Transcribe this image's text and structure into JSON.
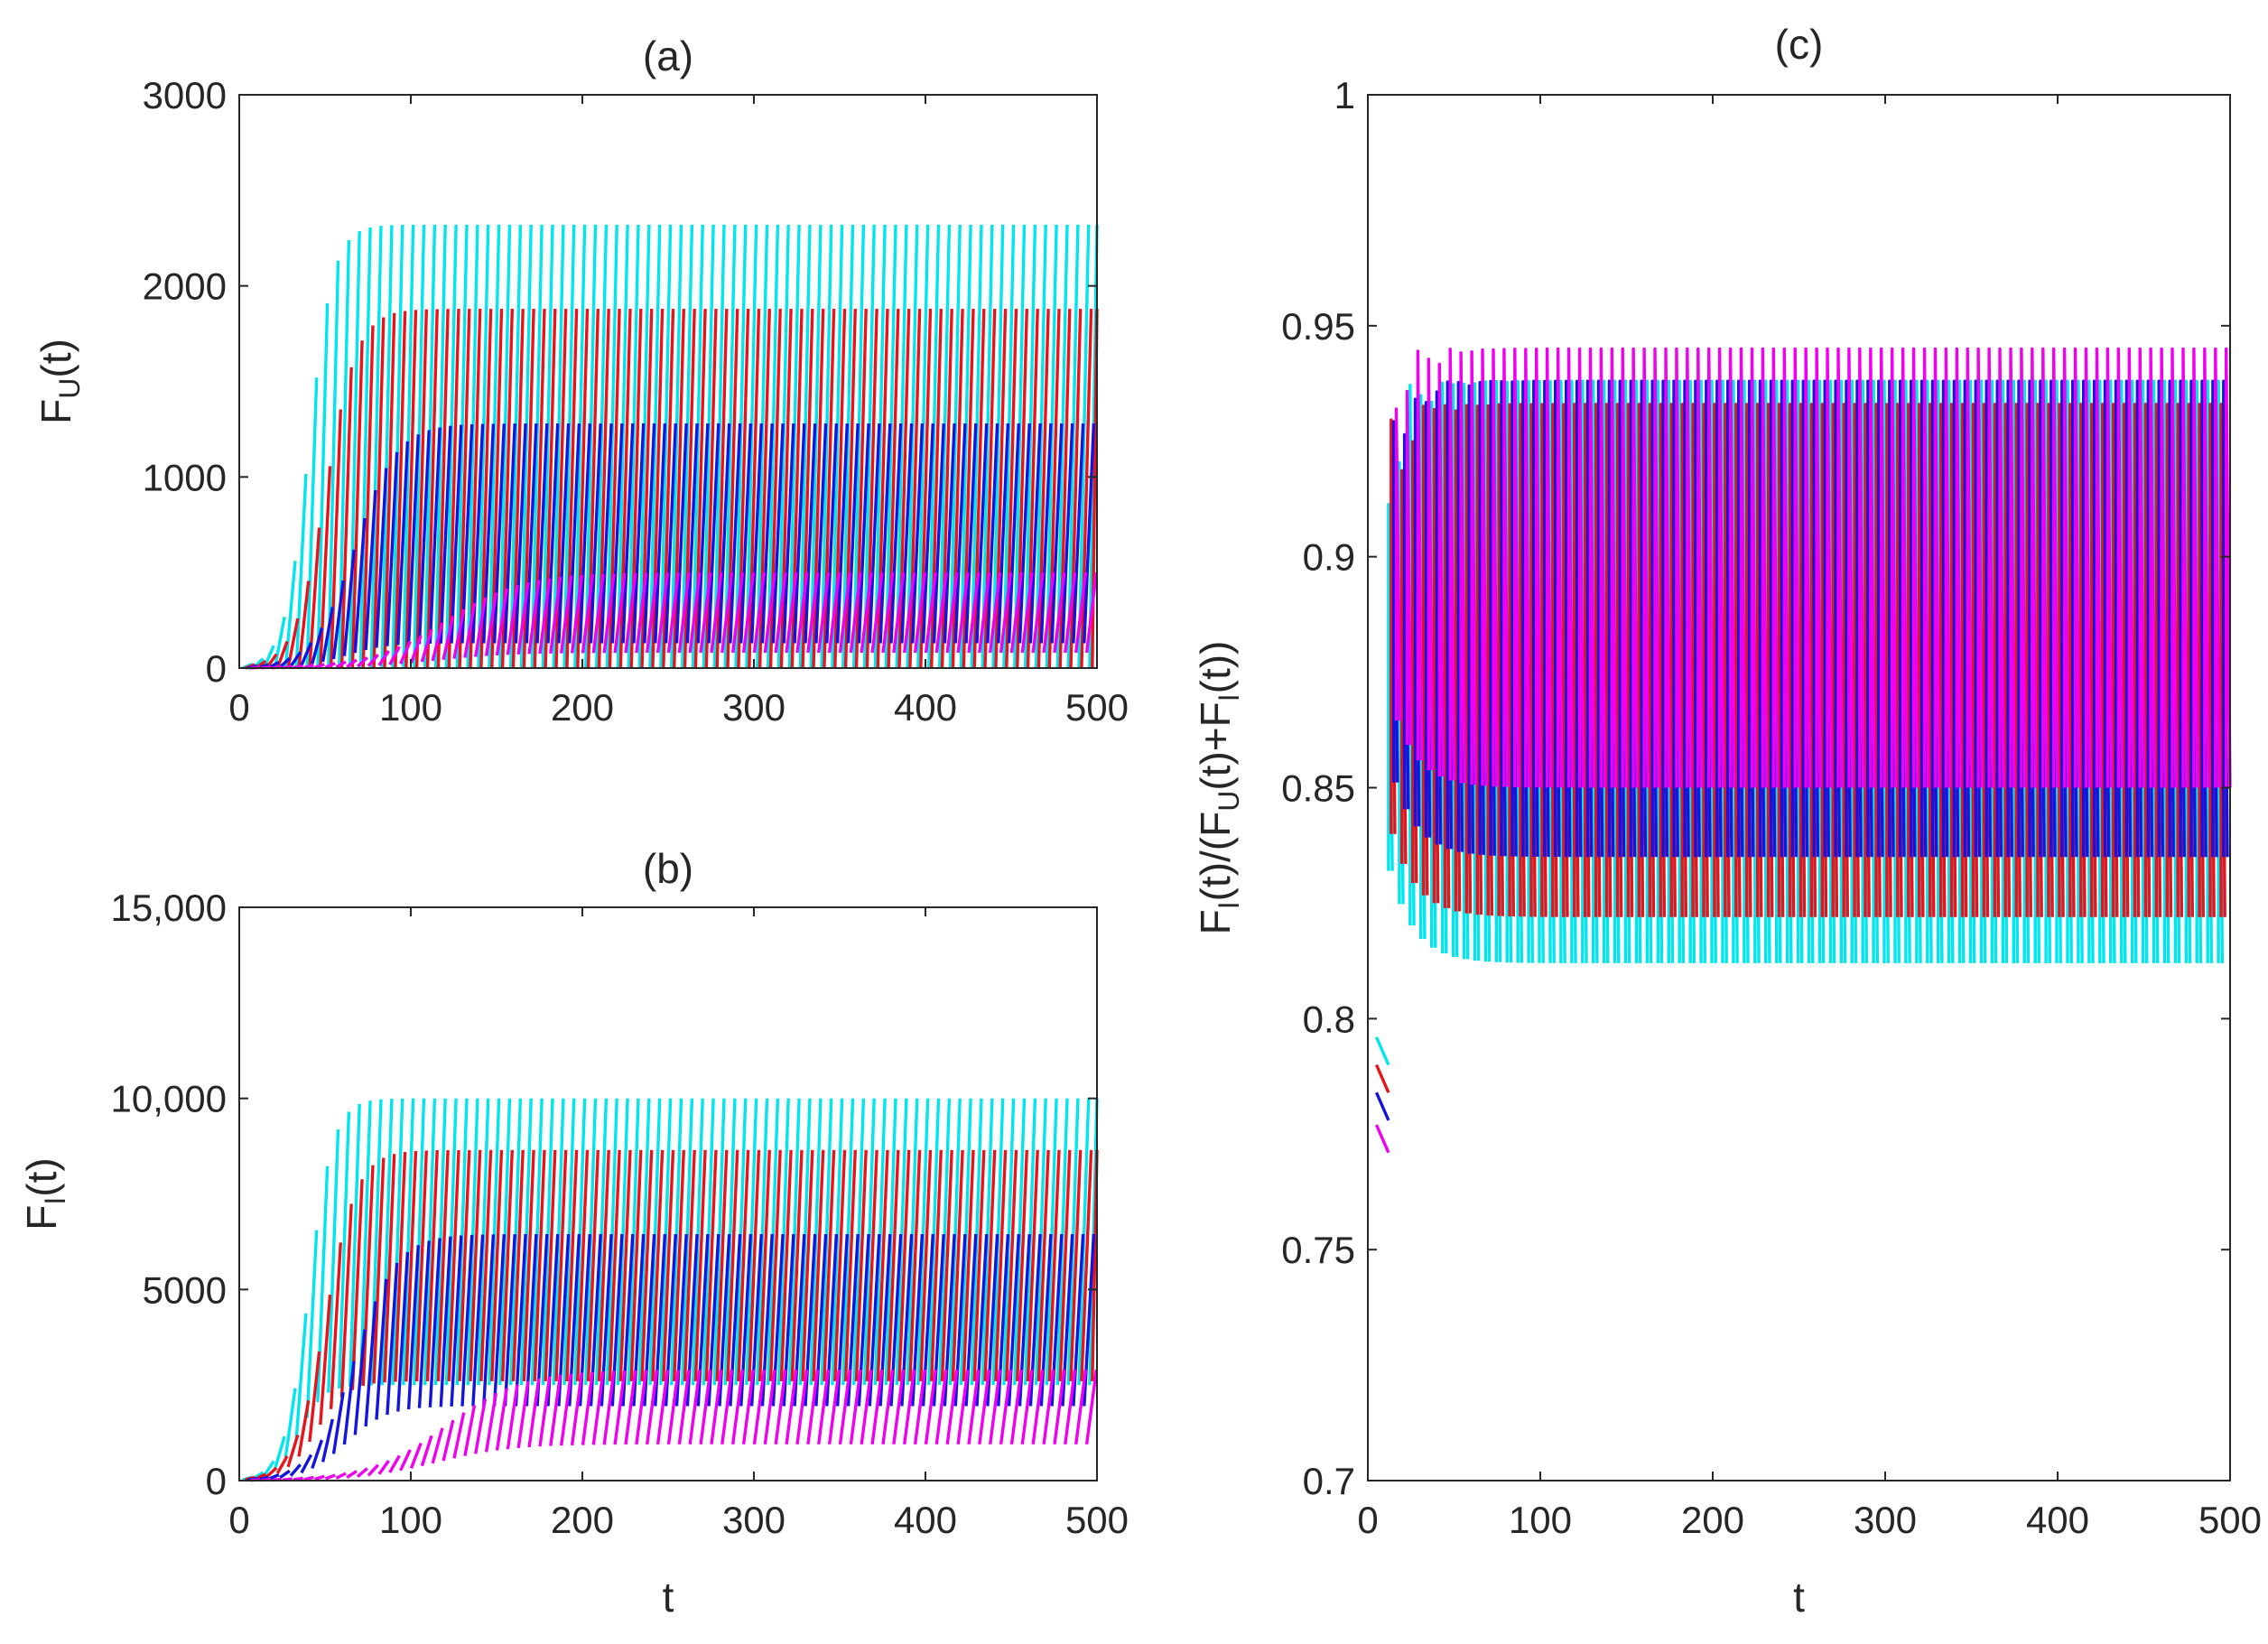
{
  "series_colors": {
    "cyan": "#00e5ee",
    "red": "#e8141c",
    "blue": "#1414e0",
    "magenta": "#f000f0",
    "purple": "#8a2be2"
  },
  "chart_data": [
    {
      "id": "a",
      "type": "line",
      "title": "(a)",
      "xlabel": "t",
      "ylabel": "F_U(t)",
      "ylabel_main": "F",
      "ylabel_sub": "U",
      "ylabel_tail": "(t)",
      "xlim": [
        0,
        500
      ],
      "ylim": [
        0,
        3000
      ],
      "xticks": [
        0,
        100,
        200,
        300,
        400,
        500
      ],
      "yticks": [
        0,
        1000,
        2000,
        3000
      ],
      "ytick_labels": [
        "0",
        "1000",
        "2000",
        "3000"
      ],
      "series": [
        {
          "name": "cyan",
          "color": "#00e5ee",
          "max": 2320,
          "min": 0,
          "rise_mid": 35,
          "rise_width": 7,
          "period": 6.25,
          "phase": 0
        },
        {
          "name": "red",
          "color": "#e8141c",
          "max": 1880,
          "min": 0,
          "rise_mid": 45,
          "rise_width": 9,
          "period": 6.25,
          "phase": 1.5
        },
        {
          "name": "blue",
          "color": "#1414e0",
          "max": 1280,
          "min": 130,
          "rise_mid": 62,
          "rise_width": 12,
          "period": 6.25,
          "phase": 3
        },
        {
          "name": "magenta",
          "color": "#f000f0",
          "max": 500,
          "min": 80,
          "rise_mid": 115,
          "rise_width": 22,
          "period": 6.25,
          "phase": 4.5
        }
      ]
    },
    {
      "id": "b",
      "type": "line",
      "title": "(b)",
      "xlabel": "t",
      "ylabel": "F_I(t)",
      "ylabel_main": "F",
      "ylabel_sub": "I",
      "ylabel_tail": "(t)",
      "xlim": [
        0,
        500
      ],
      "ylim": [
        0,
        15000
      ],
      "xticks": [
        0,
        100,
        200,
        300,
        400,
        500
      ],
      "yticks": [
        0,
        5000,
        10000,
        15000
      ],
      "ytick_labels": [
        "0",
        "5000",
        "10,000",
        "15,000"
      ],
      "series": [
        {
          "name": "cyan",
          "color": "#00e5ee",
          "max": 10000,
          "min": 2500,
          "rise_mid": 35,
          "rise_width": 7,
          "period": 6.25,
          "phase": 0
        },
        {
          "name": "red",
          "color": "#e8141c",
          "max": 8650,
          "min": 2600,
          "rise_mid": 45,
          "rise_width": 9,
          "period": 6.25,
          "phase": 1.5
        },
        {
          "name": "blue",
          "color": "#1414e0",
          "max": 6450,
          "min": 1950,
          "rise_mid": 62,
          "rise_width": 12,
          "period": 6.25,
          "phase": 3
        },
        {
          "name": "magenta",
          "color": "#f000f0",
          "max": 2900,
          "min": 950,
          "rise_mid": 115,
          "rise_width": 22,
          "period": 6.25,
          "phase": 4.5
        }
      ]
    },
    {
      "id": "c",
      "type": "line",
      "title": "(c)",
      "xlabel": "t",
      "ylabel": "F_I(t)/(F_U(t)+F_I(t))",
      "xlim": [
        0,
        500
      ],
      "ylim": [
        0.7,
        1
      ],
      "xticks": [
        0,
        100,
        200,
        300,
        400,
        500
      ],
      "yticks": [
        0.7,
        0.75,
        0.8,
        0.85,
        0.9,
        0.95,
        1
      ],
      "ytick_labels": [
        "0.7",
        "0.75",
        "0.8",
        "0.85",
        "0.9",
        "0.95",
        "1"
      ],
      "series": [
        {
          "name": "cyan",
          "color": "#00e5ee",
          "high": 0.938,
          "low": 0.812,
          "start": 0.796,
          "period": 6.25,
          "phase": 0
        },
        {
          "name": "red",
          "color": "#e8141c",
          "high": 0.933,
          "low": 0.822,
          "start": 0.79,
          "period": 6.25,
          "phase": 1.5
        },
        {
          "name": "blue",
          "color": "#1414e0",
          "high": 0.938,
          "low": 0.835,
          "start": 0.784,
          "period": 6.25,
          "phase": 3
        },
        {
          "name": "magenta",
          "color": "#f000f0",
          "high": 0.945,
          "low": 0.85,
          "start": 0.777,
          "period": 6.25,
          "phase": 4.5
        }
      ]
    }
  ]
}
